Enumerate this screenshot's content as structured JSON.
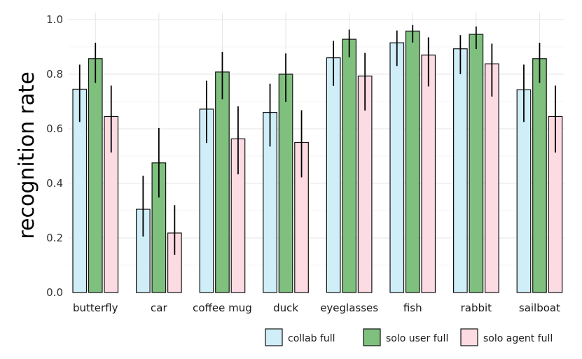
{
  "chart_data": {
    "type": "bar",
    "title": "",
    "xlabel": "",
    "ylabel": "recognition rate",
    "ylim": [
      0,
      1.05
    ],
    "yticks": [
      "0.0",
      "0.2",
      "0.4",
      "0.6",
      "0.8",
      "1.0"
    ],
    "grid": true,
    "legend_position": "bottom-right",
    "categories": [
      "butterfly",
      "car",
      "coffee mug",
      "duck",
      "eyeglasses",
      "fish",
      "rabbit",
      "sailboat"
    ],
    "series": [
      {
        "name": "collab full",
        "color": "#cfeef8",
        "values": [
          0.745,
          0.305,
          0.672,
          0.66,
          0.86,
          0.915,
          0.893,
          0.743
        ],
        "err_low": [
          0.625,
          0.205,
          0.548,
          0.535,
          0.757,
          0.83,
          0.8,
          0.625
        ],
        "err_high": [
          0.835,
          0.428,
          0.776,
          0.765,
          0.922,
          0.96,
          0.943,
          0.835
        ]
      },
      {
        "name": "solo user full",
        "color": "#7fc07f",
        "values": [
          0.857,
          0.475,
          0.808,
          0.8,
          0.928,
          0.958,
          0.946,
          0.857
        ],
        "err_low": [
          0.768,
          0.348,
          0.708,
          0.698,
          0.862,
          0.916,
          0.892,
          0.768
        ],
        "err_high": [
          0.915,
          0.603,
          0.882,
          0.876,
          0.963,
          0.98,
          0.975,
          0.915
        ]
      },
      {
        "name": "solo agent full",
        "color": "#fcdbe2",
        "values": [
          0.645,
          0.218,
          0.563,
          0.55,
          0.793,
          0.87,
          0.838,
          0.645
        ],
        "err_low": [
          0.513,
          0.138,
          0.433,
          0.422,
          0.667,
          0.755,
          0.718,
          0.513
        ],
        "err_high": [
          0.758,
          0.32,
          0.682,
          0.668,
          0.878,
          0.935,
          0.912,
          0.758
        ]
      }
    ]
  }
}
